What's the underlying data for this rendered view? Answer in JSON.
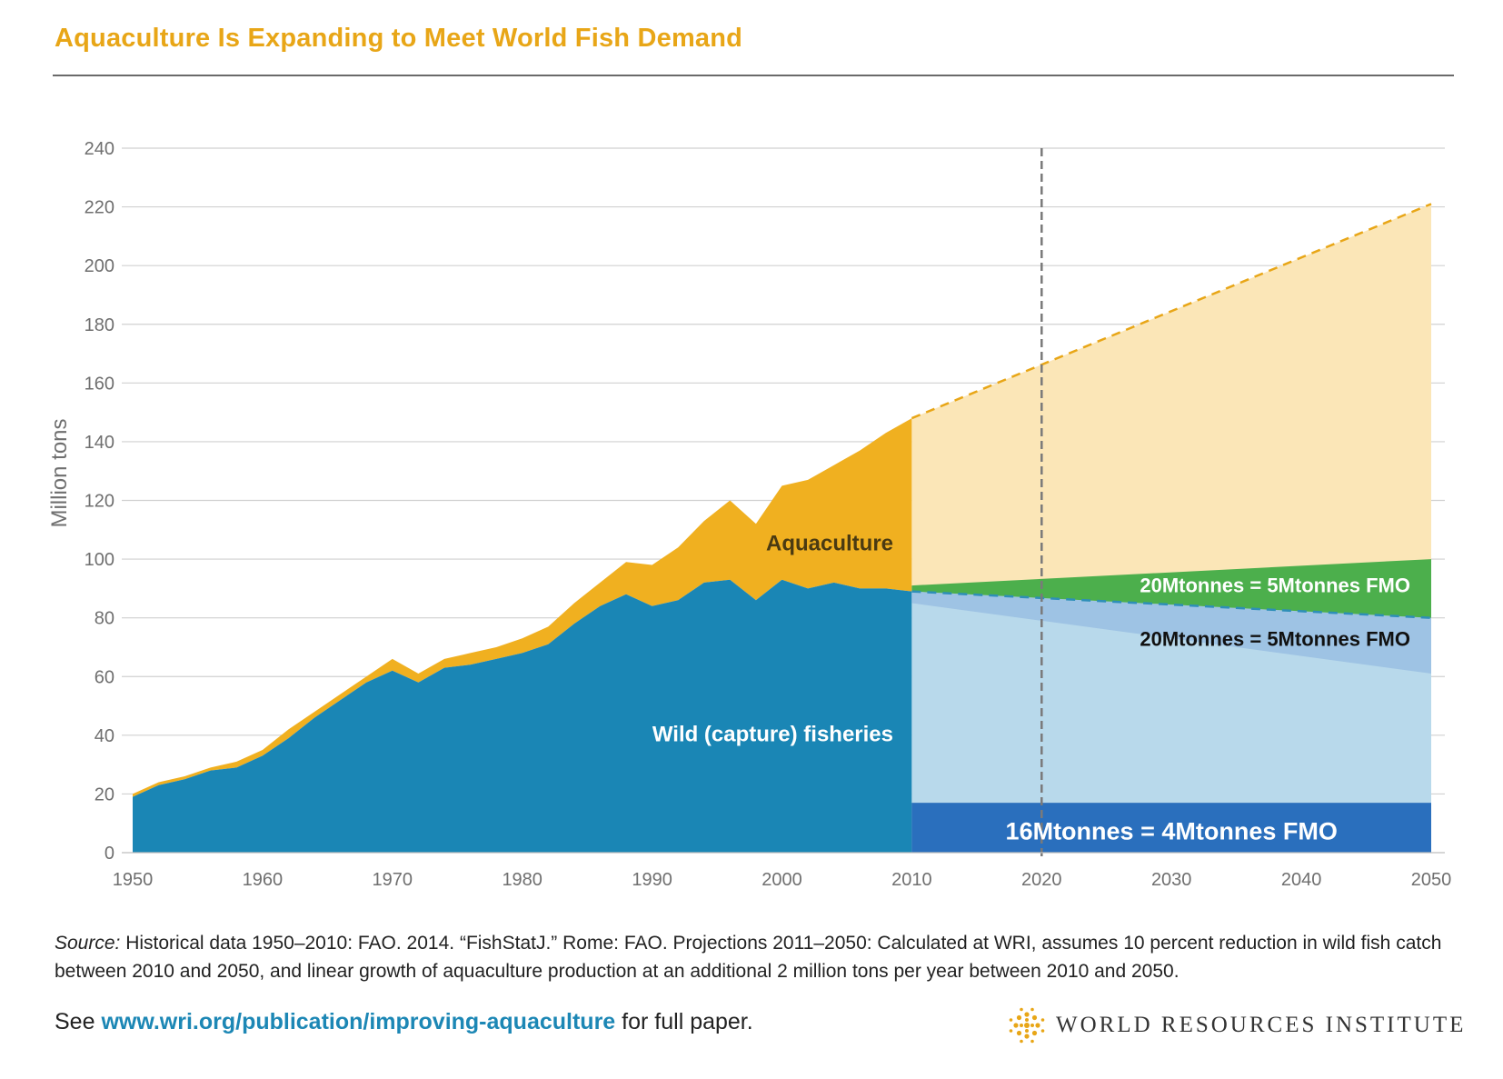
{
  "header": {
    "title": "Aquaculture Is Expanding to Meet World Fish Demand"
  },
  "chart_data": {
    "type": "area",
    "xlim": [
      1950,
      2050
    ],
    "ylim": [
      0,
      240
    ],
    "ylabel": "Million tons",
    "xticks": [
      1950,
      1960,
      1970,
      1980,
      1990,
      2000,
      2010,
      2020,
      2030,
      2040,
      2050
    ],
    "yticks": [
      0,
      20,
      40,
      60,
      80,
      100,
      120,
      140,
      160,
      180,
      200,
      220,
      240
    ],
    "grid": true,
    "marker_line_x": 2020,
    "historical": {
      "x": [
        1950,
        1952,
        1954,
        1956,
        1958,
        1960,
        1962,
        1964,
        1966,
        1968,
        1970,
        1972,
        1974,
        1976,
        1978,
        1980,
        1982,
        1984,
        1986,
        1988,
        1990,
        1992,
        1994,
        1996,
        1998,
        2000,
        2002,
        2004,
        2006,
        2008,
        2010
      ],
      "wild": [
        19,
        23,
        25,
        28,
        29,
        33,
        39,
        46,
        52,
        58,
        62,
        58,
        63,
        64,
        66,
        68,
        71,
        78,
        84,
        88,
        84,
        86,
        92,
        93,
        86,
        93,
        90,
        92,
        90,
        90,
        89
      ],
      "total": [
        20,
        24,
        26,
        29,
        31,
        35,
        42,
        48,
        54,
        60,
        66,
        61,
        66,
        68,
        70,
        73,
        77,
        85,
        92,
        99,
        98,
        104,
        113,
        120,
        112,
        125,
        127,
        132,
        137,
        143,
        148
      ]
    },
    "projection": {
      "x": [
        2010,
        2050
      ],
      "total": [
        148,
        221
      ],
      "wild": [
        89,
        80
      ],
      "green_band_top": [
        91,
        100
      ],
      "lightblue_band_bottom": [
        85,
        61
      ],
      "darkblue_band_top": [
        17,
        17
      ]
    },
    "labels": {
      "aquaculture": "Aquaculture",
      "wild": "Wild (capture) fisheries",
      "green_band": "20Mtonnes = 5Mtonnes FMO",
      "mid_band": "20Mtonnes = 5Mtonnes FMO",
      "bottom_band": "16Mtonnes = 4Mtonnes FMO"
    },
    "colors": {
      "wild": "#1a86b5",
      "aquaculture": "#f0b020",
      "projection_aqua": "#fbe6b7",
      "projection_wild": "#b8d9eb",
      "mid_band": "#9ec3e4",
      "green_band": "#4caf4c",
      "bottom_band": "#2a6fbd"
    }
  },
  "footer": {
    "source_label": "Source:",
    "source_text": " Historical data 1950–2010: FAO. 2014. “FishStatJ.” Rome: FAO. Projections 2011–2050: Calculated at WRI, assumes 10 percent reduction in wild fish catch between 2010 and 2050, and linear growth of aquaculture production at an additional 2 million tons per year between 2010 and 2050.",
    "see_prefix": "See ",
    "link": "www.wri.org/publication/improving-aquaculture",
    "see_suffix": " for full paper.",
    "org_name": "WORLD RESOURCES INSTITUTE"
  }
}
